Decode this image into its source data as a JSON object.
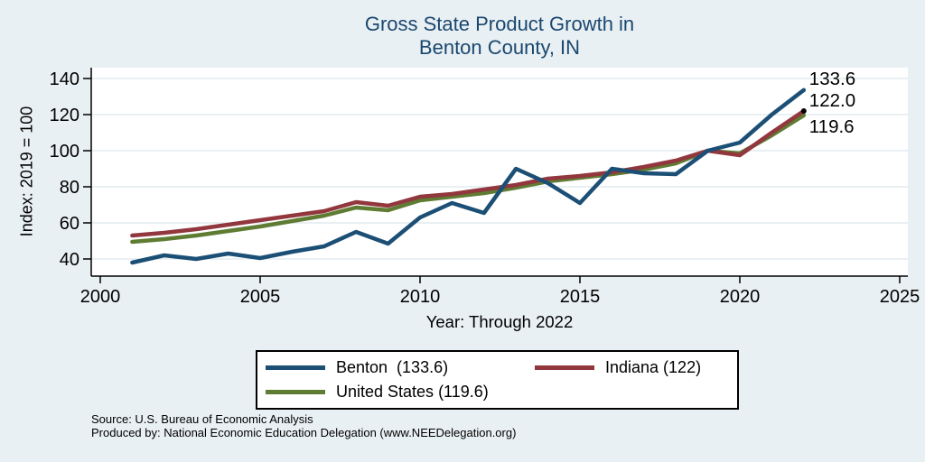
{
  "figure": {
    "title_line1": "Gross State Product Growth in",
    "title_line2": "Benton County, IN",
    "x_axis_title": "Year: Through 2022",
    "y_axis_title": "Index: 2019 = 100",
    "source_line1": "Source: U.S. Bureau of Economic Analysis",
    "source_line2": "Produced by: National Economic Education Delegation (www.NEEDelegation.org)",
    "colors": {
      "background": "#e9f0f3",
      "plot_bg": "#ffffff",
      "grid": "#dce8ec",
      "axis": "#000000",
      "title": "#1a476f",
      "benton": "#1c4f75",
      "indiana": "#92373d",
      "united_states": "#5f7c33"
    }
  },
  "legend": {
    "entries": [
      {
        "label": "Benton  (133.6)",
        "series": "Benton"
      },
      {
        "label": "Indiana (122)",
        "series": "Indiana"
      },
      {
        "label": "United States (119.6)",
        "series": "United States"
      }
    ]
  },
  "chart_data": {
    "type": "line",
    "title": "Gross State Product Growth in Benton County, IN",
    "xlabel": "Year: Through 2022",
    "ylabel": "Index: 2019 = 100",
    "xlim": [
      2000,
      2025
    ],
    "ylim": [
      30,
      145
    ],
    "x_ticks": [
      2000,
      2005,
      2010,
      2015,
      2020,
      2025
    ],
    "y_ticks": [
      40,
      60,
      80,
      100,
      120,
      140
    ],
    "grid": "horizontal",
    "legend_position": "bottom",
    "years": [
      2001,
      2002,
      2003,
      2004,
      2005,
      2006,
      2007,
      2008,
      2009,
      2010,
      2011,
      2012,
      2013,
      2014,
      2015,
      2016,
      2017,
      2018,
      2019,
      2020,
      2021,
      2022
    ],
    "series": [
      {
        "name": "Benton",
        "color": "#1c4f75",
        "end_label": "133.6",
        "end_marker": false,
        "values": [
          38,
          42,
          40,
          43,
          40.5,
          44,
          47,
          55,
          48.5,
          63,
          71,
          65.5,
          90,
          82,
          71,
          90,
          87.5,
          87,
          100,
          104.5,
          120,
          133.6
        ]
      },
      {
        "name": "Indiana",
        "color": "#92373d",
        "end_label": "122.0",
        "end_marker": true,
        "values": [
          53,
          54.5,
          56.5,
          59,
          61.5,
          64,
          66.5,
          71.5,
          69.5,
          74.5,
          76,
          78.5,
          81,
          84.5,
          86,
          88,
          91,
          94.5,
          100,
          97.5,
          110,
          122
        ]
      },
      {
        "name": "United States",
        "color": "#5f7c33",
        "end_label": "119.6",
        "end_marker": false,
        "values": [
          49.5,
          51,
          53,
          55.5,
          58,
          61,
          64,
          68.5,
          67,
          72.5,
          74.5,
          76.5,
          79.5,
          83,
          85,
          87,
          89.5,
          93,
          100,
          98.5,
          108.5,
          119.6
        ]
      }
    ]
  }
}
